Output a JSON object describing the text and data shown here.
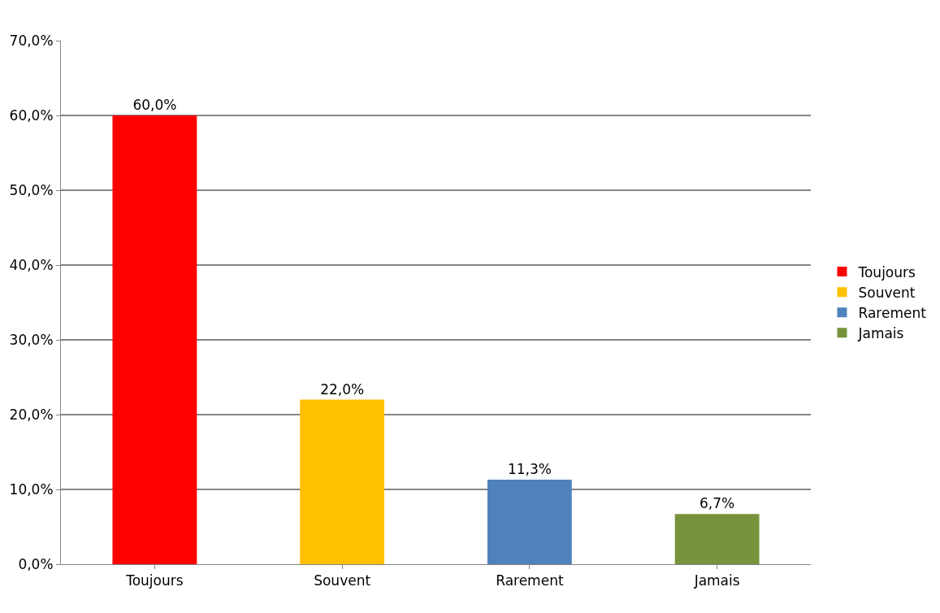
{
  "chart_data": {
    "type": "bar",
    "categories": [
      "Toujours",
      "Souvent",
      "Rarement",
      "Jamais"
    ],
    "series": [
      {
        "name": "Toujours",
        "color": "#ff0000",
        "values": [
          60.0,
          null,
          null,
          null
        ],
        "value_labels": [
          "60,0%",
          null,
          null,
          null
        ]
      },
      {
        "name": "Souvent",
        "color": "#ffc000",
        "values": [
          null,
          22.0,
          null,
          null
        ],
        "value_labels": [
          null,
          "22,0%",
          null,
          null
        ]
      },
      {
        "name": "Rarement",
        "color": "#4f81bd",
        "values": [
          null,
          null,
          11.3,
          null
        ],
        "value_labels": [
          null,
          null,
          "11,3%",
          null
        ]
      },
      {
        "name": "Jamais",
        "color": "#77933c",
        "values": [
          null,
          null,
          null,
          6.7
        ],
        "value_labels": [
          null,
          null,
          null,
          "6,7%"
        ]
      }
    ],
    "ylim": [
      0,
      70
    ],
    "yticks": [
      {
        "value": 0,
        "label": "0,0%"
      },
      {
        "value": 10,
        "label": "10,0%"
      },
      {
        "value": 20,
        "label": "20,0%"
      },
      {
        "value": 30,
        "label": "30,0%"
      },
      {
        "value": 40,
        "label": "40,0%"
      },
      {
        "value": 50,
        "label": "50,0%"
      },
      {
        "value": 60,
        "label": "60,0%"
      },
      {
        "value": 70,
        "label": "70,0%"
      }
    ],
    "grid": "y",
    "legend": "right"
  }
}
